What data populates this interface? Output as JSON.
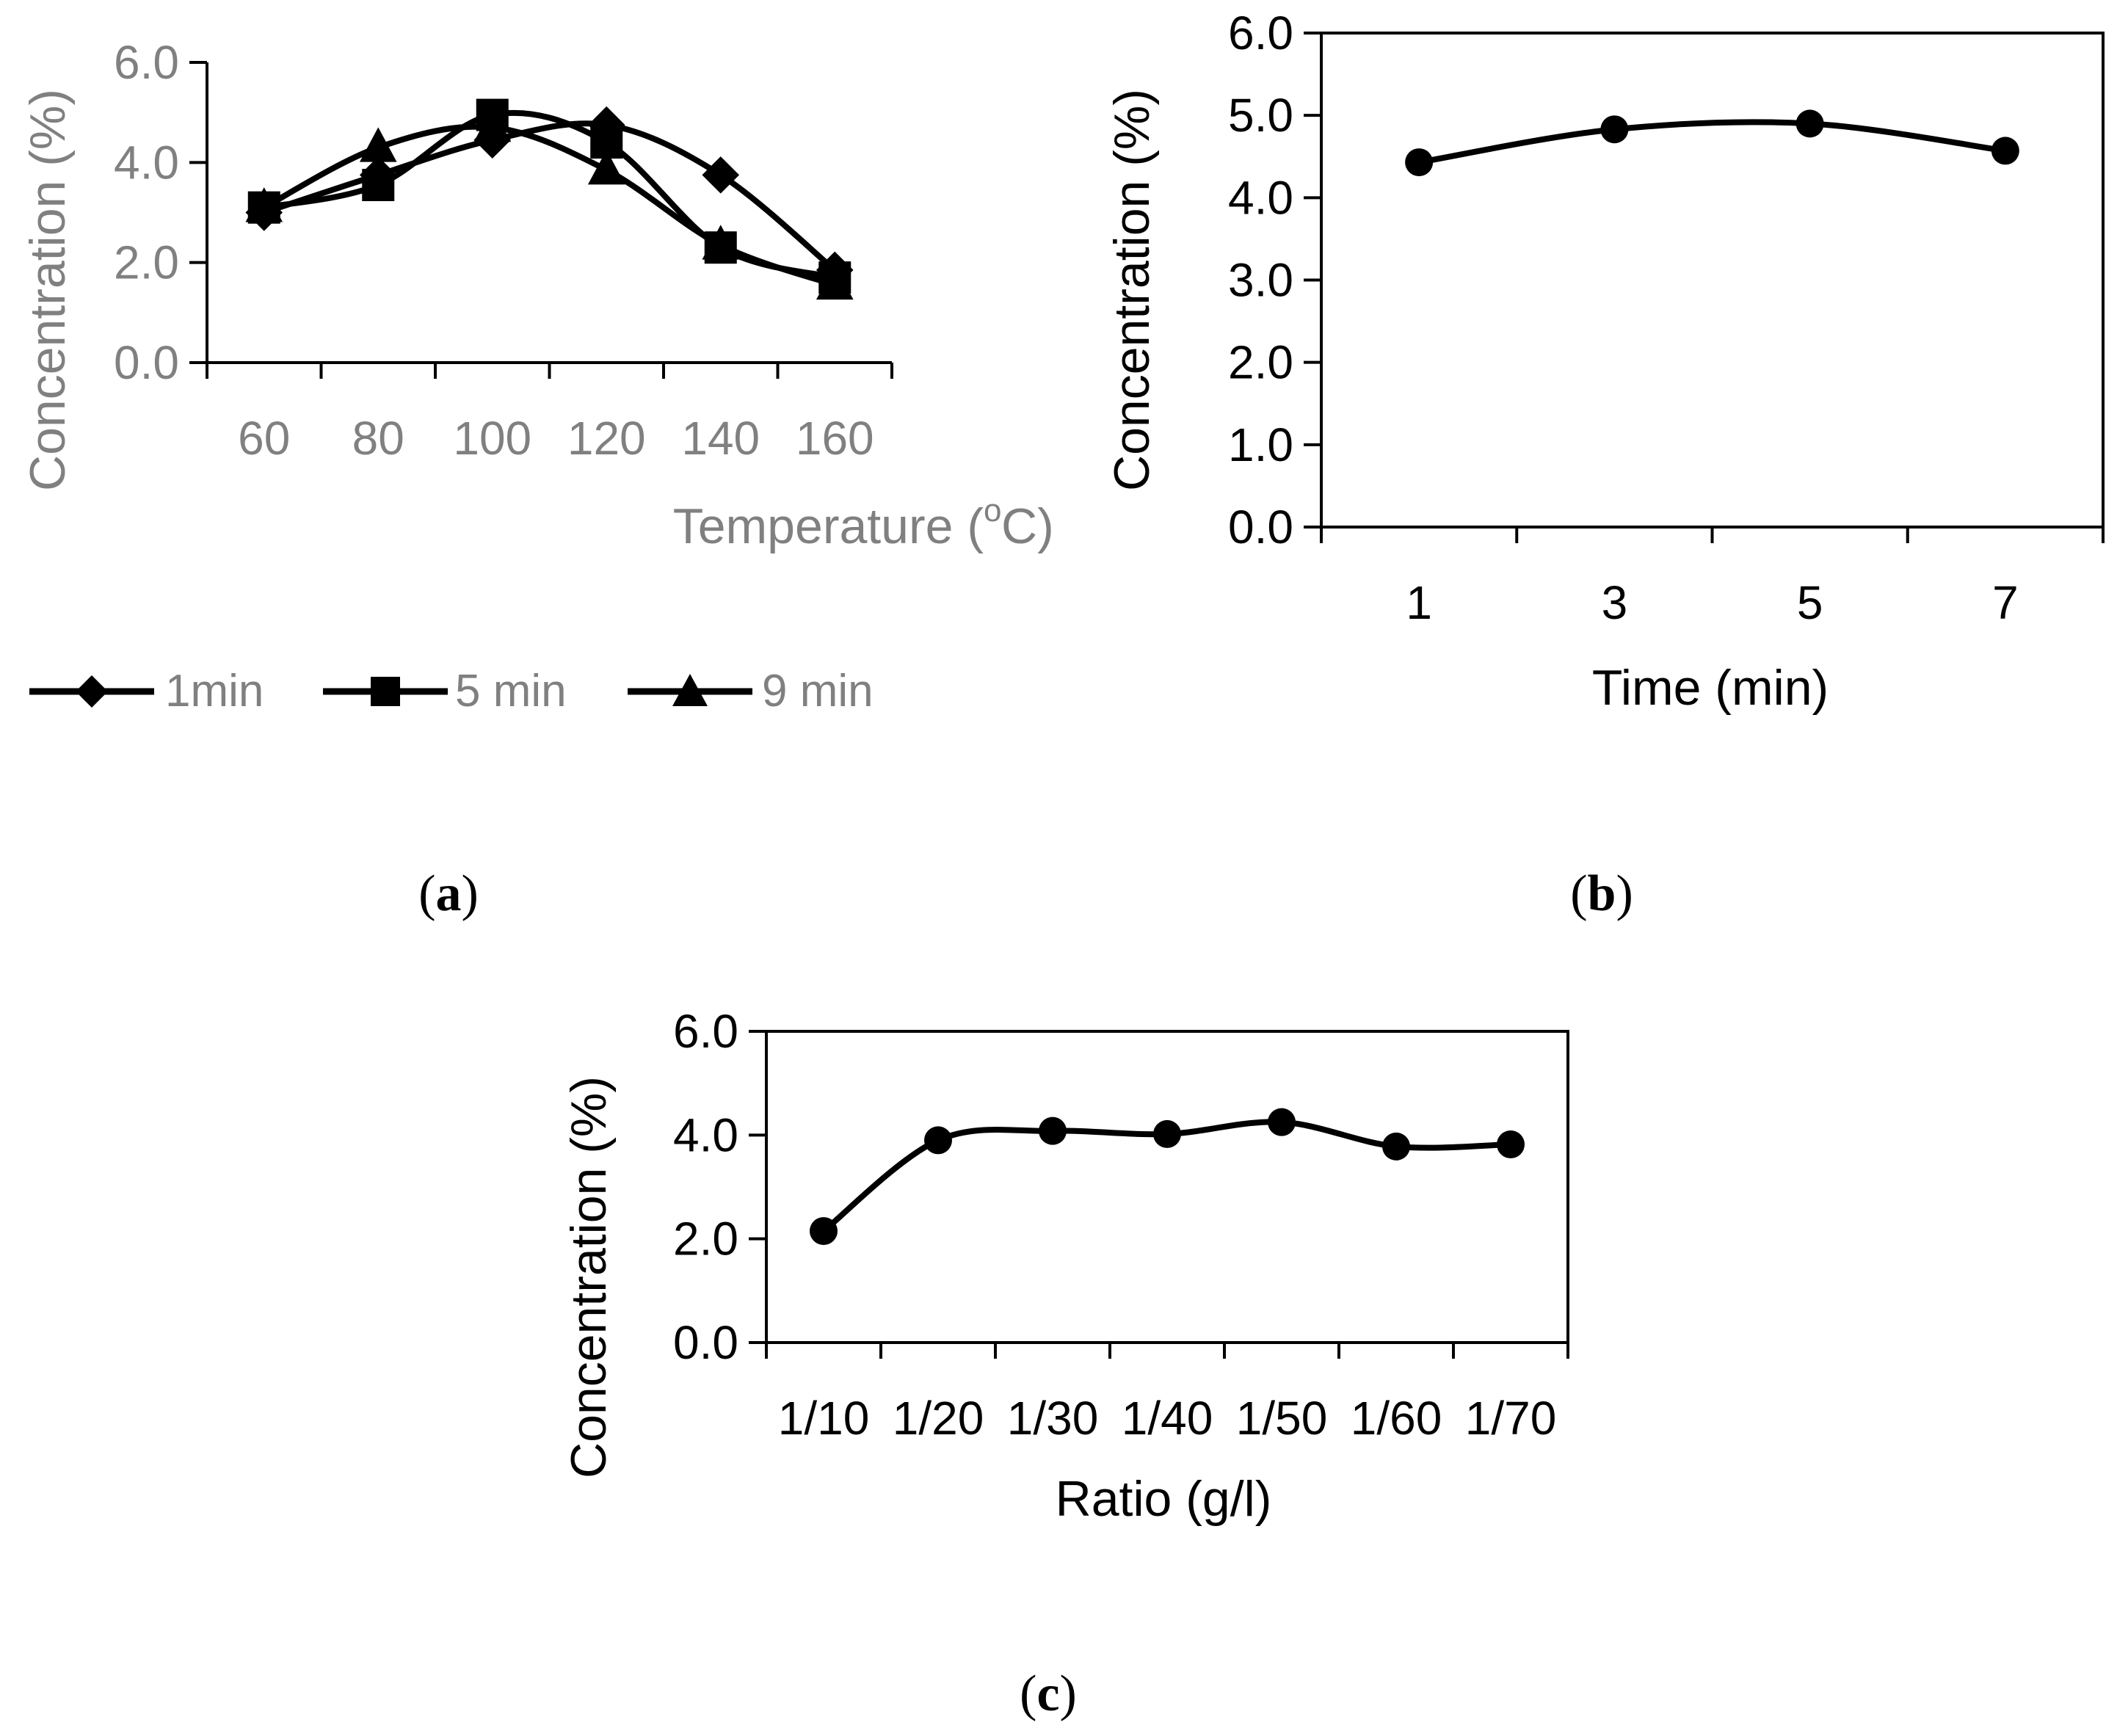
{
  "colors": {
    "line": "#000000",
    "grey_text": "#808080",
    "black_text": "#000000",
    "axis": "#000000"
  },
  "panels": {
    "a": {
      "label_paren_open": "(",
      "label_letter": "a",
      "label_paren_close": ")"
    },
    "b": {
      "label_paren_open": "(",
      "label_letter": "b",
      "label_paren_close": ")"
    },
    "c": {
      "label_paren_open": "(",
      "label_letter": "c",
      "label_paren_close": ")"
    }
  },
  "chart_data": [
    {
      "id": "a",
      "type": "line",
      "title": "",
      "xlabel": "Temperature (",
      "xlabel_super": "o",
      "xlabel_end": "C)",
      "ylabel": "Concentration (%)",
      "categories": [
        "60",
        "80",
        "100",
        "120",
        "140",
        "160"
      ],
      "ylim": [
        0,
        6
      ],
      "yticks": [
        "0.0",
        "2.0",
        "4.0",
        "6.0"
      ],
      "grid": false,
      "legend_position": "bottom",
      "series": [
        {
          "name": "1min",
          "marker": "diamond",
          "values": [
            3.0,
            3.75,
            4.45,
            4.75,
            3.75,
            1.85
          ]
        },
        {
          "name": "5 min",
          "marker": "square",
          "values": [
            3.1,
            3.55,
            4.95,
            4.4,
            2.3,
            1.7
          ]
        },
        {
          "name": "9 min",
          "marker": "triangle",
          "values": [
            3.1,
            4.3,
            4.7,
            3.85,
            2.35,
            1.55
          ]
        }
      ]
    },
    {
      "id": "b",
      "type": "line",
      "title": "",
      "xlabel": "Time (min)",
      "ylabel": "Concentration (%)",
      "categories": [
        "1",
        "3",
        "5",
        "7"
      ],
      "ylim": [
        0,
        6
      ],
      "yticks": [
        "0.0",
        "1.0",
        "2.0",
        "3.0",
        "4.0",
        "5.0",
        "6.0"
      ],
      "grid": false,
      "series": [
        {
          "name": "",
          "marker": "circle",
          "values": [
            4.43,
            4.83,
            4.9,
            4.57
          ]
        }
      ]
    },
    {
      "id": "c",
      "type": "line",
      "title": "",
      "xlabel": "Ratio (g/l)",
      "ylabel": "Concentration (%)",
      "categories": [
        "1/10",
        "1/20",
        "1/30",
        "1/40",
        "1/50",
        "1/60",
        "1/70"
      ],
      "ylim": [
        0,
        6
      ],
      "yticks": [
        "0.0",
        "2.0",
        "4.0",
        "6.0"
      ],
      "grid": false,
      "series": [
        {
          "name": "",
          "marker": "circle",
          "values": [
            2.15,
            3.9,
            4.08,
            4.02,
            4.25,
            3.78,
            3.82
          ]
        }
      ]
    }
  ]
}
